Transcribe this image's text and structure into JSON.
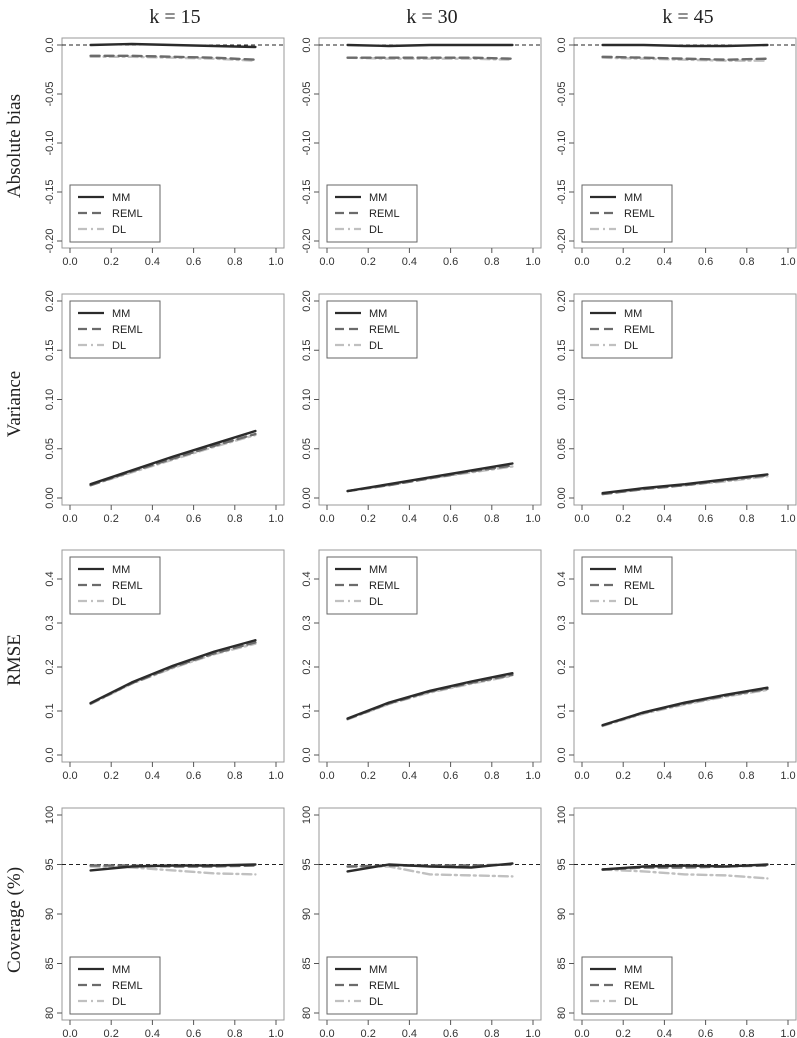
{
  "chart_data": {
    "type": "line",
    "column_titles": [
      "k = 15",
      "k = 30",
      "k = 45"
    ],
    "row_titles": [
      "Absolute bias",
      "Variance",
      "RMSE",
      "Coverage (%)"
    ],
    "x": [
      0.1,
      0.3,
      0.5,
      0.7,
      0.9
    ],
    "xlim": [
      0.0,
      1.0
    ],
    "xticks": [
      "0.0",
      "0.2",
      "0.4",
      "0.6",
      "0.8",
      "1.0"
    ],
    "legend": [
      "MM",
      "REML",
      "DL"
    ],
    "series_styles": [
      {
        "name": "MM",
        "color": "#2b2b2b",
        "dash": "solid"
      },
      {
        "name": "REML",
        "color": "#6b6b6b",
        "dash": "dashed"
      },
      {
        "name": "DL",
        "color": "#c0c0c0",
        "dash": "dashdot"
      }
    ],
    "rows": [
      {
        "metric": "Absolute bias",
        "ylim": [
          -0.2,
          0.0
        ],
        "yticks": [
          0.0,
          -0.05,
          -0.1,
          -0.15,
          -0.2
        ],
        "ytick_labels": [
          "0.0",
          "-0.05",
          "-0.10",
          "-0.15",
          "-0.20"
        ],
        "reference_line": 0.0,
        "legend_position": "bottom-left",
        "panels": [
          {
            "series": [
              {
                "name": "MM",
                "values": [
                  0.0,
                  0.001,
                  0.0,
                  -0.001,
                  -0.002
                ]
              },
              {
                "name": "REML",
                "values": [
                  -0.011,
                  -0.011,
                  -0.012,
                  -0.013,
                  -0.015
                ]
              },
              {
                "name": "DL",
                "values": [
                  -0.012,
                  -0.012,
                  -0.013,
                  -0.014,
                  -0.016
                ]
              }
            ]
          },
          {
            "series": [
              {
                "name": "MM",
                "values": [
                  0.0,
                  -0.001,
                  0.0,
                  0.0,
                  0.0
                ]
              },
              {
                "name": "REML",
                "values": [
                  -0.013,
                  -0.013,
                  -0.013,
                  -0.013,
                  -0.014
                ]
              },
              {
                "name": "DL",
                "values": [
                  -0.013,
                  -0.014,
                  -0.014,
                  -0.014,
                  -0.015
                ]
              }
            ]
          },
          {
            "series": [
              {
                "name": "MM",
                "values": [
                  0.0,
                  0.0,
                  -0.001,
                  -0.001,
                  0.0
                ]
              },
              {
                "name": "REML",
                "values": [
                  -0.012,
                  -0.013,
                  -0.014,
                  -0.015,
                  -0.014
                ]
              },
              {
                "name": "DL",
                "values": [
                  -0.013,
                  -0.014,
                  -0.015,
                  -0.016,
                  -0.016
                ]
              }
            ]
          }
        ]
      },
      {
        "metric": "Variance",
        "ylim": [
          0.0,
          0.2
        ],
        "yticks": [
          0.0,
          0.05,
          0.1,
          0.15,
          0.2
        ],
        "ytick_labels": [
          "0.00",
          "0.05",
          "0.10",
          "0.15",
          "0.20"
        ],
        "reference_line": null,
        "legend_position": "top-left",
        "panels": [
          {
            "series": [
              {
                "name": "MM",
                "values": [
                  0.014,
                  0.028,
                  0.042,
                  0.055,
                  0.068
                ]
              },
              {
                "name": "REML",
                "values": [
                  0.013,
                  0.027,
                  0.04,
                  0.053,
                  0.065
                ]
              },
              {
                "name": "DL",
                "values": [
                  0.013,
                  0.026,
                  0.039,
                  0.052,
                  0.064
                ]
              }
            ]
          },
          {
            "series": [
              {
                "name": "MM",
                "values": [
                  0.007,
                  0.014,
                  0.021,
                  0.028,
                  0.035
                ]
              },
              {
                "name": "REML",
                "values": [
                  0.007,
                  0.013,
                  0.02,
                  0.027,
                  0.033
                ]
              },
              {
                "name": "DL",
                "values": [
                  0.007,
                  0.013,
                  0.02,
                  0.026,
                  0.032
                ]
              }
            ]
          },
          {
            "series": [
              {
                "name": "MM",
                "values": [
                  0.005,
                  0.01,
                  0.014,
                  0.019,
                  0.024
                ]
              },
              {
                "name": "REML",
                "values": [
                  0.004,
                  0.009,
                  0.013,
                  0.018,
                  0.023
                ]
              },
              {
                "name": "DL",
                "values": [
                  0.004,
                  0.009,
                  0.013,
                  0.017,
                  0.022
                ]
              }
            ]
          }
        ]
      },
      {
        "metric": "RMSE",
        "ylim": [
          0.0,
          0.45
        ],
        "yticks": [
          0.0,
          0.1,
          0.2,
          0.3,
          0.4
        ],
        "ytick_labels": [
          "0.0",
          "0.1",
          "0.2",
          "0.3",
          "0.4"
        ],
        "reference_line": null,
        "legend_position": "top-left",
        "panels": [
          {
            "series": [
              {
                "name": "MM",
                "values": [
                  0.118,
                  0.165,
                  0.203,
                  0.235,
                  0.261
                ]
              },
              {
                "name": "REML",
                "values": [
                  0.117,
                  0.163,
                  0.2,
                  0.231,
                  0.256
                ]
              },
              {
                "name": "DL",
                "values": [
                  0.116,
                  0.162,
                  0.198,
                  0.229,
                  0.253
                ]
              }
            ]
          },
          {
            "series": [
              {
                "name": "MM",
                "values": [
                  0.083,
                  0.119,
                  0.146,
                  0.167,
                  0.186
                ]
              },
              {
                "name": "REML",
                "values": [
                  0.082,
                  0.117,
                  0.144,
                  0.164,
                  0.182
                ]
              },
              {
                "name": "DL",
                "values": [
                  0.081,
                  0.116,
                  0.142,
                  0.162,
                  0.18
                ]
              }
            ]
          },
          {
            "series": [
              {
                "name": "MM",
                "values": [
                  0.068,
                  0.097,
                  0.119,
                  0.137,
                  0.153
                ]
              },
              {
                "name": "REML",
                "values": [
                  0.067,
                  0.096,
                  0.117,
                  0.135,
                  0.15
                ]
              },
              {
                "name": "DL",
                "values": [
                  0.066,
                  0.094,
                  0.115,
                  0.133,
                  0.148
                ]
              }
            ]
          }
        ]
      },
      {
        "metric": "Coverage (%)",
        "ylim": [
          80,
          100
        ],
        "yticks": [
          80,
          85,
          90,
          95,
          100
        ],
        "ytick_labels": [
          "80",
          "85",
          "90",
          "95",
          "100"
        ],
        "reference_line": 95,
        "legend_position": "bottom-left",
        "panels": [
          {
            "series": [
              {
                "name": "MM",
                "values": [
                  94.4,
                  94.8,
                  94.9,
                  94.9,
                  95.0
                ]
              },
              {
                "name": "REML",
                "values": [
                  94.9,
                  94.9,
                  94.8,
                  94.8,
                  94.9
                ]
              },
              {
                "name": "DL",
                "values": [
                  94.8,
                  94.7,
                  94.4,
                  94.1,
                  94.0
                ]
              }
            ]
          },
          {
            "series": [
              {
                "name": "MM",
                "values": [
                  94.3,
                  95.0,
                  94.8,
                  94.7,
                  95.1
                ]
              },
              {
                "name": "REML",
                "values": [
                  94.8,
                  94.9,
                  94.9,
                  94.9,
                  95.0
                ]
              },
              {
                "name": "DL",
                "values": [
                  94.8,
                  94.8,
                  94.0,
                  93.9,
                  93.8
                ]
              }
            ]
          },
          {
            "series": [
              {
                "name": "MM",
                "values": [
                  94.5,
                  94.8,
                  94.9,
                  94.8,
                  95.0
                ]
              },
              {
                "name": "REML",
                "values": [
                  94.5,
                  94.7,
                  94.7,
                  94.8,
                  94.9
                ]
              },
              {
                "name": "DL",
                "values": [
                  94.5,
                  94.3,
                  94.0,
                  93.9,
                  93.6
                ]
              }
            ]
          }
        ]
      }
    ]
  }
}
